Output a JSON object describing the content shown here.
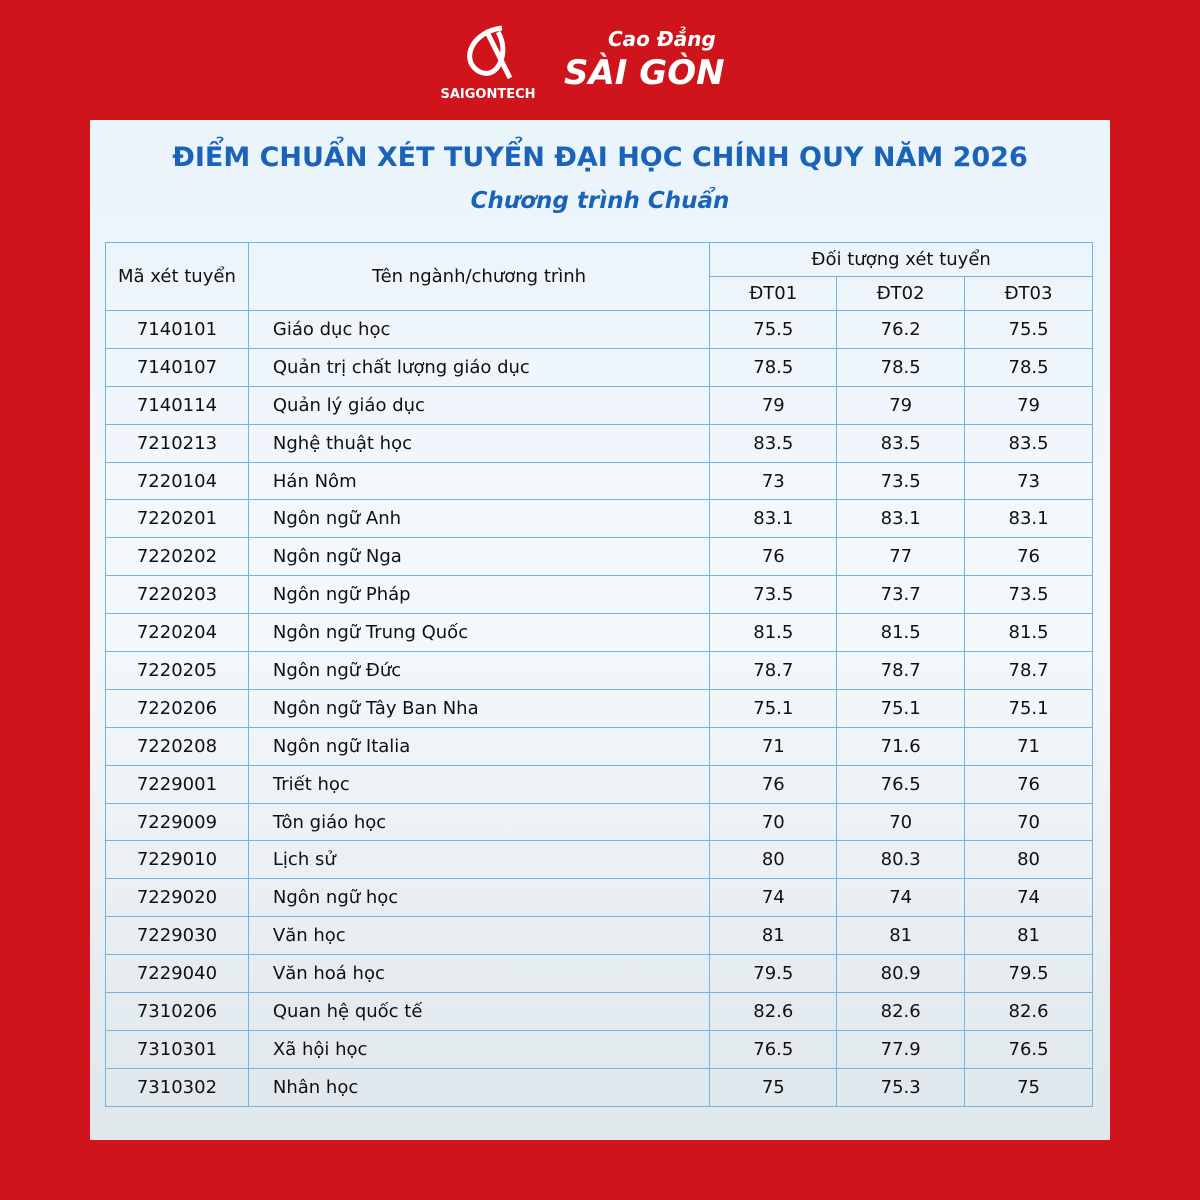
{
  "header": {
    "brand": "SAIGONTECH",
    "brand_line1": "Cao Đẳng",
    "brand_line2": "SÀI GÒN",
    "title": "ĐIỂM CHUẨN XÉT TUYỂN ĐẠI HỌC CHÍNH QUY NĂM 2026",
    "subtitle": "Chương trình Chuẩn"
  },
  "table": {
    "columns": {
      "code": "Mã xét tuyển",
      "name": "Tên ngành/chương trình",
      "group": "Đối tượng xét tuyển",
      "sub": [
        "ĐT01",
        "ĐT02",
        "ĐT03"
      ]
    },
    "rows": [
      [
        "7140101",
        "Giáo dục học",
        "75.5",
        "76.2",
        "75.5"
      ],
      [
        "7140107",
        "Quản trị chất lượng giáo dục",
        "78.5",
        "78.5",
        "78.5"
      ],
      [
        "7140114",
        "Quản lý giáo dục",
        "79",
        "79",
        "79"
      ],
      [
        "7210213",
        "Nghệ thuật học",
        "83.5",
        "83.5",
        "83.5"
      ],
      [
        "7220104",
        "Hán Nôm",
        "73",
        "73.5",
        "73"
      ],
      [
        "7220201",
        "Ngôn ngữ Anh",
        "83.1",
        "83.1",
        "83.1"
      ],
      [
        "7220202",
        "Ngôn ngữ Nga",
        "76",
        "77",
        "76"
      ],
      [
        "7220203",
        "Ngôn ngữ Pháp",
        "73.5",
        "73.7",
        "73.5"
      ],
      [
        "7220204",
        "Ngôn ngữ Trung Quốc",
        "81.5",
        "81.5",
        "81.5"
      ],
      [
        "7220205",
        "Ngôn ngữ Đức",
        "78.7",
        "78.7",
        "78.7"
      ],
      [
        "7220206",
        "Ngôn ngữ Tây Ban Nha",
        "75.1",
        "75.1",
        "75.1"
      ],
      [
        "7220208",
        "Ngôn ngữ Italia",
        "71",
        "71.6",
        "71"
      ],
      [
        "7229001",
        "Triết học",
        "76",
        "76.5",
        "76"
      ],
      [
        "7229009",
        "Tôn giáo học",
        "70",
        "70",
        "70"
      ],
      [
        "7229010",
        "Lịch sử",
        "80",
        "80.3",
        "80"
      ],
      [
        "7229020",
        "Ngôn ngữ học",
        "74",
        "74",
        "74"
      ],
      [
        "7229030",
        "Văn học",
        "81",
        "81",
        "81"
      ],
      [
        "7229040",
        "Văn hoá học",
        "79.5",
        "80.9",
        "79.5"
      ],
      [
        "7310206",
        "Quan hệ quốc tế",
        "82.6",
        "82.6",
        "82.6"
      ],
      [
        "7310301",
        "Xã hội học",
        "76.5",
        "77.9",
        "76.5"
      ],
      [
        "7310302",
        "Nhân học",
        "75",
        "75.3",
        "75"
      ]
    ]
  }
}
